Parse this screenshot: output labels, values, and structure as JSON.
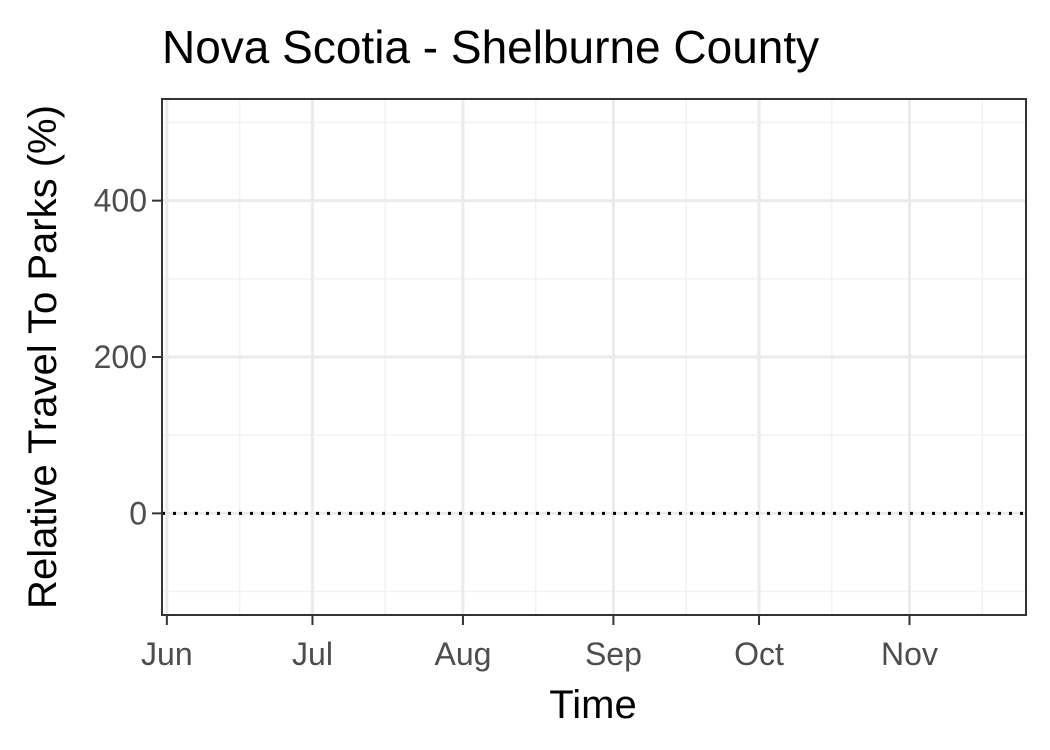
{
  "chart_data": {
    "type": "line",
    "title": "Nova Scotia - Shelburne County",
    "xlabel": "Time",
    "ylabel": "Relative Travel To Parks (%)",
    "x_axis": {
      "type": "date",
      "range": [
        "2020-05-31",
        "2020-11-25"
      ],
      "ticks": [
        {
          "label": "Jun",
          "value": "2020-06-01"
        },
        {
          "label": "Jul",
          "value": "2020-07-01"
        },
        {
          "label": "Aug",
          "value": "2020-08-01"
        },
        {
          "label": "Sep",
          "value": "2020-09-01"
        },
        {
          "label": "Oct",
          "value": "2020-10-01"
        },
        {
          "label": "Nov",
          "value": "2020-11-01"
        }
      ],
      "minor_ticks": [
        "2020-06-16",
        "2020-07-16",
        "2020-08-16",
        "2020-09-16",
        "2020-10-16",
        "2020-11-16"
      ]
    },
    "y_axis": {
      "range": [
        -130,
        530
      ],
      "ticks": [
        0,
        200,
        400
      ],
      "minor_ticks": [
        -100,
        100,
        300,
        500
      ]
    },
    "reference_lines": [
      {
        "axis": "y",
        "value": 0,
        "style": "dotted",
        "color": "#000000"
      }
    ],
    "series": [],
    "grid": true,
    "colors": {
      "panel_border": "#333333",
      "grid_major": "#ebebeb",
      "grid_minor": "#f2f2f2",
      "tick_label": "#4d4d4d"
    }
  }
}
